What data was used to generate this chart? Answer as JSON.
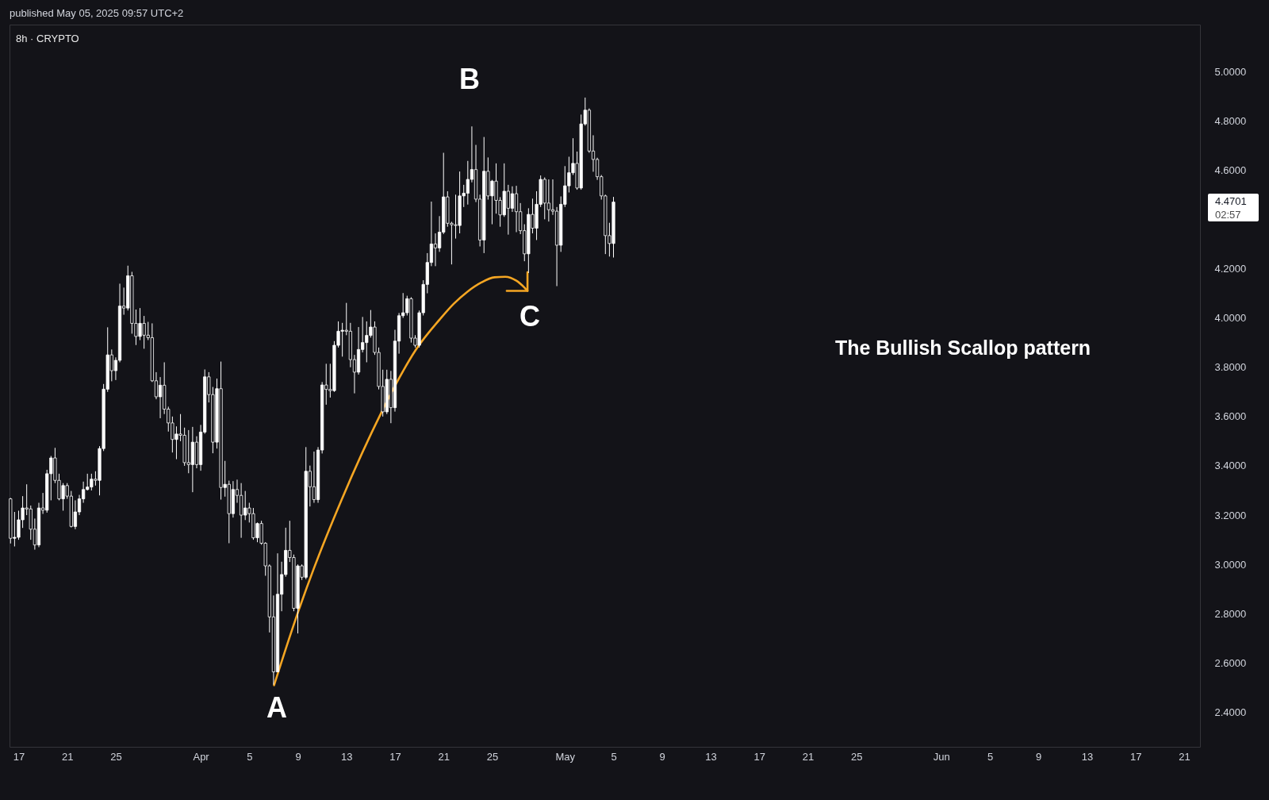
{
  "chart_data": {
    "type": "candlestick",
    "title": "8h · CRYPTO",
    "color": "#ffffff",
    "x": [
      "2025-03-16T08:00",
      "2025-03-16T16:00",
      "2025-03-17T00:00",
      "2025-03-17T08:00",
      "2025-03-17T16:00",
      "2025-03-18T00:00",
      "2025-03-18T08:00",
      "2025-03-18T16:00",
      "2025-03-19T00:00",
      "2025-03-19T08:00",
      "2025-03-19T16:00",
      "2025-03-20T00:00",
      "2025-03-20T08:00",
      "2025-03-20T16:00",
      "2025-03-21T00:00",
      "2025-03-21T08:00",
      "2025-03-21T16:00",
      "2025-03-22T00:00",
      "2025-03-22T08:00",
      "2025-03-22T16:00",
      "2025-03-23T00:00",
      "2025-03-23T08:00",
      "2025-03-23T16:00",
      "2025-03-24T00:00",
      "2025-03-24T08:00",
      "2025-03-24T16:00",
      "2025-03-25T00:00",
      "2025-03-25T08:00",
      "2025-03-25T16:00",
      "2025-03-26T00:00",
      "2025-03-26T08:00",
      "2025-03-26T16:00",
      "2025-03-27T00:00",
      "2025-03-27T08:00",
      "2025-03-27T16:00",
      "2025-03-28T00:00",
      "2025-03-28T08:00",
      "2025-03-28T16:00",
      "2025-03-29T00:00",
      "2025-03-29T08:00",
      "2025-03-29T16:00",
      "2025-03-30T00:00",
      "2025-03-30T08:00",
      "2025-03-30T16:00",
      "2025-03-31T00:00",
      "2025-03-31T08:00",
      "2025-03-31T16:00",
      "2025-04-01T00:00",
      "2025-04-01T08:00",
      "2025-04-01T16:00",
      "2025-04-02T00:00",
      "2025-04-02T08:00",
      "2025-04-02T16:00",
      "2025-04-03T00:00",
      "2025-04-03T08:00",
      "2025-04-03T16:00",
      "2025-04-04T00:00",
      "2025-04-04T08:00",
      "2025-04-04T16:00",
      "2025-04-05T00:00",
      "2025-04-05T08:00",
      "2025-04-05T16:00",
      "2025-04-06T00:00",
      "2025-04-06T08:00",
      "2025-04-06T16:00",
      "2025-04-07T00:00",
      "2025-04-07T08:00",
      "2025-04-07T16:00",
      "2025-04-08T00:00",
      "2025-04-08T08:00",
      "2025-04-08T16:00",
      "2025-04-09T00:00",
      "2025-04-09T08:00",
      "2025-04-09T16:00",
      "2025-04-10T00:00",
      "2025-04-10T08:00",
      "2025-04-10T16:00",
      "2025-04-11T00:00",
      "2025-04-11T08:00",
      "2025-04-11T16:00",
      "2025-04-12T00:00",
      "2025-04-12T08:00",
      "2025-04-12T16:00",
      "2025-04-13T00:00",
      "2025-04-13T08:00",
      "2025-04-13T16:00",
      "2025-04-14T00:00",
      "2025-04-14T08:00",
      "2025-04-14T16:00",
      "2025-04-15T00:00",
      "2025-04-15T08:00",
      "2025-04-15T16:00",
      "2025-04-16T00:00",
      "2025-04-16T08:00",
      "2025-04-16T16:00",
      "2025-04-17T00:00",
      "2025-04-17T08:00",
      "2025-04-17T16:00",
      "2025-04-18T00:00",
      "2025-04-18T08:00",
      "2025-04-18T16:00",
      "2025-04-19T00:00",
      "2025-04-19T08:00",
      "2025-04-19T16:00",
      "2025-04-20T00:00",
      "2025-04-20T08:00",
      "2025-04-20T16:00",
      "2025-04-21T00:00",
      "2025-04-21T08:00",
      "2025-04-21T16:00",
      "2025-04-22T00:00",
      "2025-04-22T08:00",
      "2025-04-22T16:00",
      "2025-04-23T00:00",
      "2025-04-23T08:00",
      "2025-04-23T16:00",
      "2025-04-24T00:00",
      "2025-04-24T08:00",
      "2025-04-24T16:00",
      "2025-04-25T00:00",
      "2025-04-25T08:00",
      "2025-04-25T16:00",
      "2025-04-26T00:00",
      "2025-04-26T08:00",
      "2025-04-26T16:00",
      "2025-04-27T00:00",
      "2025-04-27T08:00",
      "2025-04-27T16:00",
      "2025-04-28T00:00",
      "2025-04-28T08:00",
      "2025-04-28T16:00",
      "2025-04-29T00:00",
      "2025-04-29T08:00",
      "2025-04-29T16:00",
      "2025-04-30T00:00",
      "2025-04-30T08:00",
      "2025-04-30T16:00",
      "2025-05-01T00:00",
      "2025-05-01T08:00",
      "2025-05-01T16:00",
      "2025-05-02T00:00",
      "2025-05-02T08:00",
      "2025-05-02T16:00",
      "2025-05-03T00:00",
      "2025-05-03T08:00",
      "2025-05-03T16:00",
      "2025-05-04T00:00",
      "2025-05-04T08:00",
      "2025-05-04T16:00",
      "2025-05-05T00:00"
    ],
    "ohlc": [
      [
        3.266,
        3.27,
        3.085,
        3.106
      ],
      [
        3.106,
        3.213,
        3.073,
        3.11
      ],
      [
        3.11,
        3.218,
        3.1,
        3.181
      ],
      [
        3.181,
        3.277,
        3.148,
        3.229
      ],
      [
        3.229,
        3.325,
        3.2,
        3.225
      ],
      [
        3.225,
        3.239,
        3.1,
        3.143
      ],
      [
        3.143,
        3.186,
        3.06,
        3.079
      ],
      [
        3.079,
        3.25,
        3.07,
        3.229
      ],
      [
        3.229,
        3.29,
        3.205,
        3.22
      ],
      [
        3.22,
        3.384,
        3.21,
        3.368
      ],
      [
        3.368,
        3.44,
        3.26,
        3.432
      ],
      [
        3.432,
        3.473,
        3.33,
        3.341
      ],
      [
        3.341,
        3.368,
        3.26,
        3.266
      ],
      [
        3.266,
        3.33,
        3.218,
        3.32
      ],
      [
        3.32,
        3.33,
        3.266,
        3.277
      ],
      [
        3.277,
        3.298,
        3.15,
        3.154
      ],
      [
        3.154,
        3.26,
        3.143,
        3.213
      ],
      [
        3.213,
        3.282,
        3.2,
        3.266
      ],
      [
        3.266,
        3.336,
        3.25,
        3.304
      ],
      [
        3.304,
        3.368,
        3.3,
        3.314
      ],
      [
        3.314,
        3.368,
        3.3,
        3.346
      ],
      [
        3.346,
        3.378,
        3.32,
        3.341
      ],
      [
        3.341,
        3.48,
        3.28,
        3.47
      ],
      [
        3.47,
        3.732,
        3.46,
        3.711
      ],
      [
        3.711,
        3.962,
        3.7,
        3.85
      ],
      [
        3.85,
        3.872,
        3.743,
        3.786
      ],
      [
        3.786,
        3.84,
        3.748,
        3.828
      ],
      [
        3.828,
        4.139,
        3.82,
        4.048
      ],
      [
        4.048,
        4.123,
        4.013,
        4.04
      ],
      [
        4.04,
        4.212,
        4.03,
        4.171
      ],
      [
        4.171,
        4.187,
        3.936,
        3.978
      ],
      [
        3.978,
        4.034,
        3.89,
        3.925
      ],
      [
        3.925,
        4.04,
        3.91,
        3.978
      ],
      [
        3.978,
        4.008,
        3.875,
        3.93
      ],
      [
        3.93,
        3.984,
        3.91,
        3.92
      ],
      [
        3.92,
        3.978,
        3.74,
        3.745
      ],
      [
        3.745,
        3.78,
        3.67,
        3.68
      ],
      [
        3.68,
        3.76,
        3.593,
        3.727
      ],
      [
        3.727,
        3.82,
        3.61,
        3.63
      ],
      [
        3.63,
        3.64,
        3.539,
        3.574
      ],
      [
        3.574,
        3.6,
        3.454,
        3.507
      ],
      [
        3.507,
        3.56,
        3.427,
        3.529
      ],
      [
        3.529,
        3.61,
        3.5,
        3.524
      ],
      [
        3.524,
        3.555,
        3.4,
        3.413
      ],
      [
        3.413,
        3.545,
        3.37,
        3.405
      ],
      [
        3.405,
        3.558,
        3.293,
        3.496
      ],
      [
        3.496,
        3.52,
        3.39,
        3.405
      ],
      [
        3.405,
        3.566,
        3.38,
        3.537
      ],
      [
        3.537,
        3.791,
        3.53,
        3.761
      ],
      [
        3.761,
        3.78,
        3.657,
        3.689
      ],
      [
        3.689,
        3.72,
        3.451,
        3.496
      ],
      [
        3.496,
        3.754,
        3.47,
        3.713
      ],
      [
        3.713,
        3.823,
        3.263,
        3.312
      ],
      [
        3.312,
        3.42,
        3.275,
        3.325
      ],
      [
        3.325,
        3.34,
        3.086,
        3.206
      ],
      [
        3.206,
        3.338,
        3.19,
        3.304
      ],
      [
        3.304,
        3.344,
        3.25,
        3.28
      ],
      [
        3.28,
        3.33,
        3.108,
        3.2
      ],
      [
        3.2,
        3.298,
        3.18,
        3.229
      ],
      [
        3.229,
        3.25,
        3.17,
        3.206
      ],
      [
        3.206,
        3.229,
        3.1,
        3.108
      ],
      [
        3.108,
        3.17,
        3.09,
        3.166
      ],
      [
        3.166,
        3.177,
        3.08,
        3.086
      ],
      [
        3.086,
        3.09,
        2.954,
        2.994
      ],
      [
        2.994,
        3.0,
        2.724,
        2.787
      ],
      [
        2.787,
        2.874,
        2.512,
        2.564
      ],
      [
        2.564,
        3.045,
        2.564,
        2.879
      ],
      [
        2.879,
        3.011,
        2.81,
        2.959
      ],
      [
        2.959,
        3.149,
        2.95,
        3.057
      ],
      [
        3.057,
        3.177,
        3.01,
        3.028
      ],
      [
        3.028,
        3.04,
        2.81,
        2.822
      ],
      [
        2.822,
        3.0,
        2.72,
        2.994
      ],
      [
        2.994,
        3.0,
        2.937,
        2.948
      ],
      [
        2.948,
        3.476,
        2.94,
        3.378
      ],
      [
        3.378,
        3.401,
        3.235,
        3.315
      ],
      [
        3.315,
        3.458,
        3.25,
        3.263
      ],
      [
        3.263,
        3.476,
        3.25,
        3.464
      ],
      [
        3.464,
        3.74,
        3.45,
        3.728
      ],
      [
        3.728,
        3.814,
        3.648,
        3.71
      ],
      [
        3.71,
        3.814,
        3.677,
        3.705
      ],
      [
        3.705,
        3.906,
        3.7,
        3.889
      ],
      [
        3.889,
        3.986,
        3.88,
        3.946
      ],
      [
        3.946,
        3.98,
        3.843,
        3.95
      ],
      [
        3.95,
        4.061,
        3.93,
        3.946
      ],
      [
        3.946,
        3.98,
        3.8,
        3.831
      ],
      [
        3.831,
        3.85,
        3.694,
        3.78
      ],
      [
        3.78,
        3.963,
        3.77,
        3.872
      ],
      [
        3.872,
        4.004,
        3.86,
        3.9
      ],
      [
        3.9,
        3.986,
        3.82,
        3.929
      ],
      [
        3.929,
        4.032,
        3.92,
        3.963
      ],
      [
        3.963,
        3.986,
        3.85,
        3.86
      ],
      [
        3.86,
        3.88,
        3.71,
        3.722
      ],
      [
        3.722,
        3.79,
        3.6,
        3.619
      ],
      [
        3.619,
        3.79,
        3.61,
        3.751
      ],
      [
        3.751,
        3.785,
        3.573,
        3.636
      ],
      [
        3.636,
        3.952,
        3.62,
        3.906
      ],
      [
        3.906,
        4.02,
        3.855,
        4.009
      ],
      [
        4.009,
        4.101,
        4.0,
        4.021
      ],
      [
        4.021,
        4.09,
        4.01,
        4.078
      ],
      [
        4.078,
        4.084,
        3.9,
        3.918
      ],
      [
        3.918,
        3.93,
        3.88,
        3.889
      ],
      [
        3.889,
        4.03,
        3.88,
        4.021
      ],
      [
        4.021,
        4.153,
        4.01,
        4.136
      ],
      [
        4.136,
        4.263,
        4.1,
        4.225
      ],
      [
        4.225,
        4.472,
        4.21,
        4.3
      ],
      [
        4.3,
        4.343,
        4.21,
        4.284
      ],
      [
        4.284,
        4.413,
        4.268,
        4.348
      ],
      [
        4.348,
        4.67,
        4.34,
        4.491
      ],
      [
        4.491,
        4.514,
        4.37,
        4.384
      ],
      [
        4.384,
        4.39,
        4.217,
        4.378
      ],
      [
        4.378,
        4.5,
        4.322,
        4.375
      ],
      [
        4.375,
        4.594,
        4.343,
        4.495
      ],
      [
        4.495,
        4.54,
        4.45,
        4.506
      ],
      [
        4.506,
        4.637,
        4.46,
        4.562
      ],
      [
        4.562,
        4.777,
        4.55,
        4.602
      ],
      [
        4.602,
        4.702,
        4.47,
        4.482
      ],
      [
        4.482,
        4.5,
        4.29,
        4.316
      ],
      [
        4.316,
        4.734,
        4.263,
        4.595
      ],
      [
        4.595,
        4.651,
        4.48,
        4.495
      ],
      [
        4.495,
        4.56,
        4.38,
        4.555
      ],
      [
        4.555,
        4.627,
        4.423,
        4.477
      ],
      [
        4.477,
        4.49,
        4.37,
        4.418
      ],
      [
        4.418,
        4.627,
        4.41,
        4.514
      ],
      [
        4.514,
        4.54,
        4.338,
        4.445
      ],
      [
        4.445,
        4.534,
        4.43,
        4.504
      ],
      [
        4.504,
        4.536,
        4.348,
        4.431
      ],
      [
        4.431,
        4.466,
        4.34,
        4.354
      ],
      [
        4.354,
        4.38,
        4.23,
        4.26
      ],
      [
        4.26,
        4.445,
        4.182,
        4.42
      ],
      [
        4.42,
        4.484,
        4.343,
        4.364
      ],
      [
        4.364,
        4.514,
        4.316,
        4.461
      ],
      [
        4.461,
        4.578,
        4.45,
        4.562
      ],
      [
        4.562,
        4.57,
        4.4,
        4.466
      ],
      [
        4.466,
        4.562,
        4.391,
        4.439
      ],
      [
        4.439,
        4.562,
        4.418,
        4.433
      ],
      [
        4.433,
        4.45,
        4.129,
        4.295
      ],
      [
        4.295,
        4.493,
        4.268,
        4.461
      ],
      [
        4.461,
        4.616,
        4.45,
        4.536
      ],
      [
        4.536,
        4.654,
        4.509,
        4.589
      ],
      [
        4.589,
        4.729,
        4.58,
        4.627
      ],
      [
        4.627,
        4.675,
        4.52,
        4.527
      ],
      [
        4.527,
        4.825,
        4.52,
        4.787
      ],
      [
        4.787,
        4.894,
        4.78,
        4.843
      ],
      [
        4.843,
        4.85,
        4.67,
        4.677
      ],
      [
        4.677,
        4.741,
        4.593,
        4.643
      ],
      [
        4.643,
        4.65,
        4.56,
        4.573
      ],
      [
        4.573,
        4.58,
        4.48,
        4.495
      ],
      [
        4.495,
        4.5,
        4.259,
        4.334
      ],
      [
        4.334,
        4.386,
        4.249,
        4.302
      ],
      [
        4.302,
        4.491,
        4.245,
        4.4701
      ]
    ],
    "series": [
      {
        "type": "line",
        "color": "#f5a623",
        "x": [
          "2025-04-07T01:00",
          "2025-04-09T01:00",
          "2025-04-10T07:00",
          "2025-04-12T14:00",
          "2025-04-15T22:00",
          "2025-04-17T04:00",
          "2025-04-18T17:00",
          "2025-04-20T17:00",
          "2025-04-21T20:00",
          "2025-04-22T23:00",
          "2025-04-24T02:00",
          "2025-04-25T05:00",
          "2025-04-26T02:00",
          "2025-04-27T00:00",
          "2025-04-27T16:00",
          "2025-04-27T22:00"
        ],
        "values": [
          2.51,
          2.81,
          2.98,
          3.26,
          3.62,
          3.74,
          3.87,
          3.995,
          4.057,
          4.106,
          4.143,
          4.165,
          4.167,
          4.151,
          4.123,
          4.11
        ]
      },
      {
        "type": "line",
        "color": "#f5a623",
        "x": [
          "2025-04-27T22:00",
          "2025-04-27T22:00",
          "2025-04-26T05:00"
        ],
        "values": [
          4.185,
          4.11,
          4.11
        ]
      }
    ],
    "xlim": [
      "2025-03-16T06:00",
      "2025-06-22T07:30"
    ],
    "ylim": [
      2.26,
      5.19
    ],
    "xticks": [
      {
        "value": "2025-03-17",
        "label": "17"
      },
      {
        "value": "2025-03-21",
        "label": "21"
      },
      {
        "value": "2025-03-25",
        "label": "25"
      },
      {
        "value": "2025-04-01",
        "label": "Apr"
      },
      {
        "value": "2025-04-05",
        "label": "5"
      },
      {
        "value": "2025-04-09",
        "label": "9"
      },
      {
        "value": "2025-04-13",
        "label": "13"
      },
      {
        "value": "2025-04-17",
        "label": "17"
      },
      {
        "value": "2025-04-21",
        "label": "21"
      },
      {
        "value": "2025-04-25",
        "label": "25"
      },
      {
        "value": "2025-05-01",
        "label": "May"
      },
      {
        "value": "2025-05-05",
        "label": "5"
      },
      {
        "value": "2025-05-09",
        "label": "9"
      },
      {
        "value": "2025-05-13",
        "label": "13"
      },
      {
        "value": "2025-05-17",
        "label": "17"
      },
      {
        "value": "2025-05-21",
        "label": "21"
      },
      {
        "value": "2025-05-25",
        "label": "25"
      },
      {
        "value": "2025-06-01",
        "label": "Jun"
      },
      {
        "value": "2025-06-05",
        "label": "5"
      },
      {
        "value": "2025-06-09",
        "label": "9"
      },
      {
        "value": "2025-06-13",
        "label": "13"
      },
      {
        "value": "2025-06-17",
        "label": "17"
      },
      {
        "value": "2025-06-21",
        "label": "21"
      }
    ],
    "yticks": [
      {
        "value": 2.4,
        "label": "2.4000"
      },
      {
        "value": 2.6,
        "label": "2.6000"
      },
      {
        "value": 2.8,
        "label": "2.8000"
      },
      {
        "value": 3.0,
        "label": "3.0000"
      },
      {
        "value": 3.2,
        "label": "3.2000"
      },
      {
        "value": 3.4,
        "label": "3.4000"
      },
      {
        "value": 3.6,
        "label": "3.6000"
      },
      {
        "value": 3.8,
        "label": "3.8000"
      },
      {
        "value": 4.0,
        "label": "4.0000"
      },
      {
        "value": 4.2,
        "label": "4.2000"
      },
      {
        "value": 4.6,
        "label": "4.6000"
      },
      {
        "value": 4.8,
        "label": "4.8000"
      },
      {
        "value": 5.0,
        "label": "5.0000"
      }
    ],
    "annotations": [
      "published May 05, 2025 09:57 UTC+2",
      "The Bullish Scallop pattern",
      "A",
      "B",
      "C",
      "4.4701",
      "02:57"
    ]
  }
}
